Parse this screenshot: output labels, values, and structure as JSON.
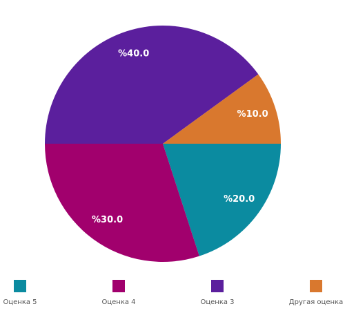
{
  "chart_data": {
    "type": "pie",
    "categories": [
      "Оценка 5",
      "Оценка 4",
      "Оценка 3",
      "Другая оценка"
    ],
    "values": [
      20,
      30,
      40,
      10
    ],
    "value_labels": [
      "%20.0",
      "%30.0",
      "%40.0",
      "%10.0"
    ],
    "colors": [
      "#0b8ba0",
      "#a1006d",
      "#5b1f9d",
      "#d9782e"
    ],
    "legend": "bottom"
  }
}
